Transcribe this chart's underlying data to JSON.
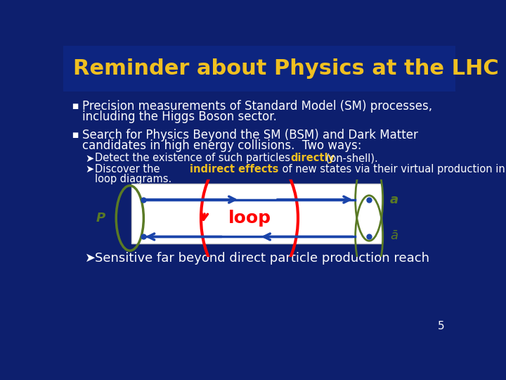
{
  "bg_color": "#0d1f6e",
  "title_bg_color": "#0d2580",
  "title": "Reminder about Physics at the LHC",
  "title_color": "#f0c020",
  "title_fontsize": 22,
  "bullet_color": "#ffffff",
  "bullet1_text1": "Precision measurements of Standard Model (SM) processes,",
  "bullet1_text2": "including the Higgs Boson sector.",
  "bullet2_text1": "Search for Physics Beyond the SM (BSM) and Dark Matter",
  "bullet2_text2": "candidates in high energy collisions.  Two ways:",
  "sub1_pre": "Detect the existence of such particles ",
  "sub1_bold": "directly",
  "sub1_post": " (on-shell).",
  "sub2_pre": "Discover the ",
  "sub2_bold": "indirect effects",
  "sub2_post": " of new states via their virtual production in",
  "sub2_line2": "loop diagrams.",
  "sub3_text": "Sensitive far beyond direct particle production reach",
  "highlight_color": "#f0c020",
  "page_number": "5",
  "body_fontsize": 12,
  "sub_fontsize": 10.5,
  "sub3_fontsize": 13
}
